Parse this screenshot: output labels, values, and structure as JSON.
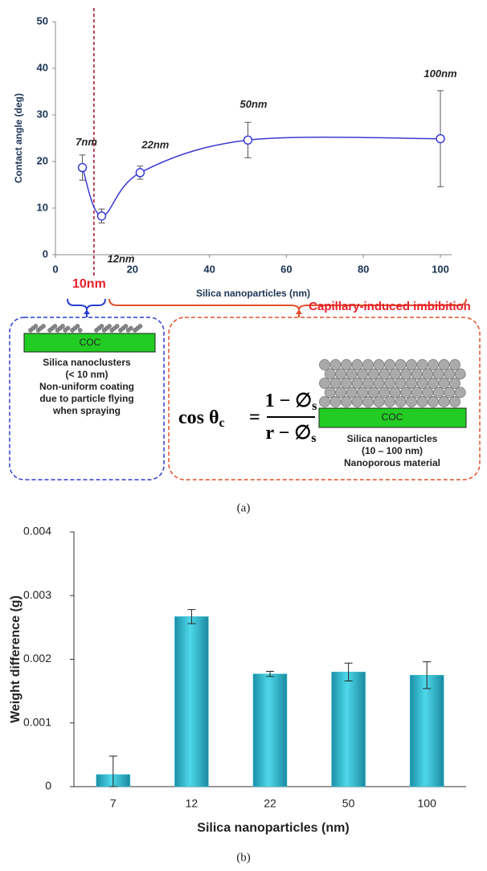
{
  "chart_data": [
    {
      "type": "line",
      "y_label": "Contact angle (deg)",
      "x_label": "Silica nanoparticles (nm)",
      "x": [
        7,
        12,
        22,
        50,
        100
      ],
      "values": [
        18.7,
        8.3,
        17.6,
        24.6,
        24.9
      ],
      "errors": [
        2.7,
        1.5,
        1.4,
        3.8,
        10.3
      ],
      "color": "#3b3bd4",
      "annotations": [
        "7nm",
        "12nm",
        "22nm",
        "50nm",
        "100nm"
      ],
      "threshold": {
        "x": 10,
        "label": "10nm",
        "color": "#a0102a"
      },
      "xlim": [
        0,
        103
      ],
      "xticks": [
        0,
        20,
        40,
        60,
        80,
        100
      ],
      "ylim": [
        0,
        50
      ],
      "yticks": [
        0,
        10,
        20,
        30,
        40,
        50
      ]
    },
    {
      "type": "bar",
      "y_label": "Weight difference (g)",
      "x_label": "Silica nanoparticles (nm)",
      "categories": [
        "7",
        "12",
        "22",
        "50",
        "100"
      ],
      "values": [
        0.00019,
        0.00267,
        0.00177,
        0.0018,
        0.00175
      ],
      "errors": [
        0.00029,
        0.00011,
        4e-05,
        0.00014,
        0.00021
      ],
      "color": "#2fc0d6",
      "ylim": [
        0,
        0.004
      ],
      "yticks": [
        0,
        0.001,
        0.002,
        0.003,
        0.004
      ]
    }
  ],
  "diagram": {
    "imbibition": "Capillary-induced imbibition",
    "left": {
      "substrate": "COC",
      "lines": [
        "Silica nanoclusters",
        "(< 10 nm)",
        "Non-uniform  coating",
        "due to particle flying",
        "when spraying"
      ]
    },
    "right": {
      "substrate": "COC",
      "lines": [
        "Silica nanoparticles",
        "(10 – 100 nm)",
        "Nanoporous material"
      ],
      "equation": {
        "lhs": "cos θ",
        "lhs_sub": "c",
        "eq": "=",
        "numerator": "1 − ∅",
        "num_sub": "s",
        "denominator": "r − ∅",
        "den_sub": "s"
      }
    }
  },
  "panel_labels": [
    "(a)",
    "(b)"
  ]
}
